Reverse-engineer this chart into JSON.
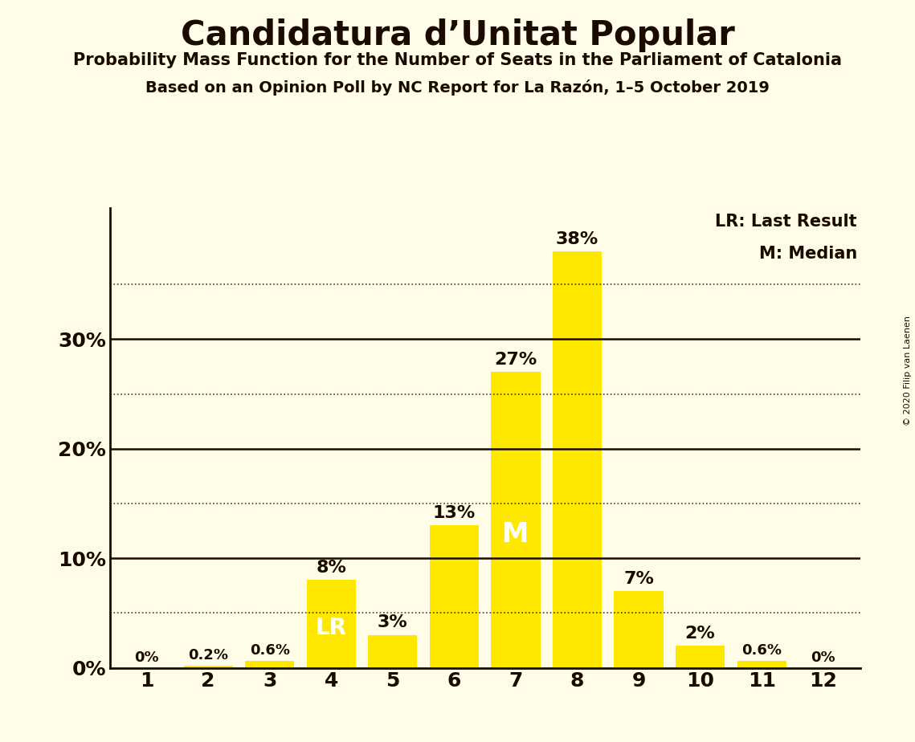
{
  "title": "Candidatura d’Unitat Popular",
  "subtitle1": "Probability Mass Function for the Number of Seats in the Parliament of Catalonia",
  "subtitle2": "Based on an Opinion Poll by NC Report for La Razón, 1–5 October 2019",
  "copyright": "© 2020 Filip van Laenen",
  "seats": [
    1,
    2,
    3,
    4,
    5,
    6,
    7,
    8,
    9,
    10,
    11,
    12
  ],
  "probabilities": [
    0.0,
    0.2,
    0.6,
    8.0,
    3.0,
    13.0,
    27.0,
    38.0,
    7.0,
    2.0,
    0.6,
    0.0
  ],
  "bar_color": "#FFE800",
  "background_color": "#FFFCE8",
  "text_color": "#1a0a00",
  "lr_seat": 4,
  "median_seat": 7,
  "ylim_max": 42,
  "yticks": [
    0,
    10,
    20,
    30
  ],
  "dotted_lines": [
    5,
    15,
    25,
    35
  ],
  "legend_lr": "LR: Last Result",
  "legend_m": "M: Median",
  "title_fontsize": 30,
  "subtitle1_fontsize": 15,
  "subtitle2_fontsize": 14,
  "tick_fontsize": 18,
  "label_fontsize_small": 13,
  "label_fontsize_large": 16,
  "lr_label_fontsize": 20,
  "m_label_fontsize": 24,
  "legend_fontsize": 15,
  "copyright_fontsize": 8
}
